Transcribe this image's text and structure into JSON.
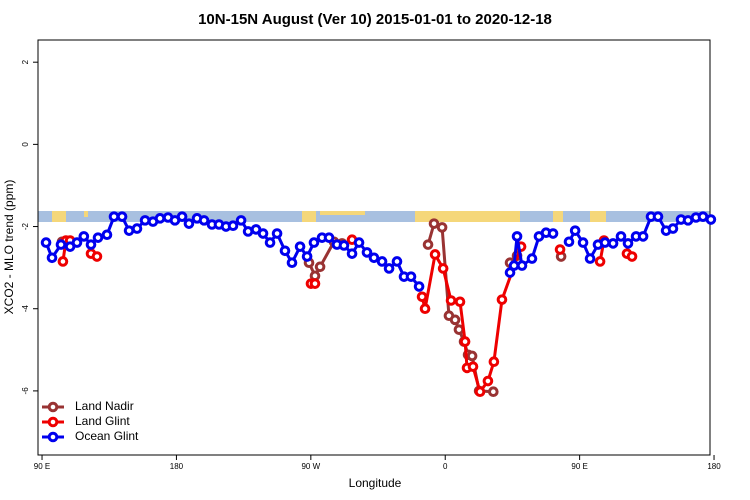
{
  "chart_data": {
    "type": "line",
    "title": "10N-15N August (Ver 10)   2015-01-01 to 2020-12-18",
    "x_label": "Longitude",
    "y_label": "XCO2 - MLO trend (ppm)",
    "xlim": [
      87.3,
      537.3
    ],
    "ylim": [
      -7.56,
      2.54
    ],
    "xticks": [
      {
        "value": 90,
        "label": "90 E"
      },
      {
        "value": 180,
        "label": "180"
      },
      {
        "value": 270,
        "label": "90 W"
      },
      {
        "value": 360,
        "label": "0"
      },
      {
        "value": 450,
        "label": "90 E"
      },
      {
        "value": 540,
        "label": "180"
      }
    ],
    "yticks": [
      2,
      0,
      -2,
      -4,
      -6
    ],
    "legend": "bottom-left",
    "series": [
      {
        "name": "Land Nadir",
        "color": "#993333",
        "x": [
          103.4,
          null,
          268.8,
          272.8,
          276.2,
          285.5,
          290.9,
          null,
          348.5,
          352.5,
          357.9,
          362.5,
          366.6,
          369.2,
          372.6,
          375.3,
          378,
          382.7,
          392.2,
          null,
          403.4,
          408.1,
          null,
          437.6
        ],
        "values": [
          -2.37,
          null,
          -2.88,
          -3.2,
          -2.98,
          -2.37,
          -2.41,
          null,
          -2.44,
          -1.93,
          -2.02,
          -4.17,
          -4.27,
          -4.51,
          -4.8,
          -5.12,
          -5.15,
          -6,
          -6.02,
          null,
          -2.88,
          -2.71,
          null,
          -2.73
        ]
      },
      {
        "name": "Land Glint",
        "color": "#ee0000",
        "x": [
          104,
          106,
          108.8,
          null,
          122.8,
          126.8,
          null,
          270.1,
          272.8,
          null,
          297.6,
          null,
          344.5,
          346.5,
          353.2,
          358.6,
          363.9,
          369.9,
          373.3,
          374.6,
          378.6,
          383.3,
          388.6,
          392.6,
          398,
          410.8,
          null,
          436.9,
          null,
          463.7,
          466.3,
          null,
          481.7,
          485.1
        ],
        "values": [
          -2.85,
          -2.34,
          -2.34,
          null,
          -2.66,
          -2.73,
          null,
          -3.39,
          -3.39,
          null,
          -2.32,
          null,
          -3.71,
          -4,
          -2.68,
          -3.02,
          -3.8,
          -3.83,
          -4.8,
          -5.44,
          -5.41,
          -6.02,
          -5.76,
          -5.29,
          -3.78,
          -2.49,
          null,
          -2.56,
          null,
          -2.85,
          -2.34,
          null,
          -2.66,
          -2.73
        ]
      },
      {
        "name": "Ocean Glint",
        "color": "#0000ee",
        "x": [
          92.7,
          96.7,
          102.7,
          108.8,
          113.4,
          118,
          122.8,
          127.5,
          133.5,
          138.2,
          143.6,
          148.3,
          153.6,
          159,
          164.3,
          169,
          174.4,
          179,
          183.8,
          188.4,
          193.8,
          198.5,
          203.8,
          208.5,
          213.2,
          217.9,
          223.3,
          228,
          233.3,
          238,
          242.7,
          247.4,
          252.7,
          257.4,
          262.8,
          267.5,
          272.1,
          277.5,
          282.2,
          287.5,
          292.2,
          297.6,
          302.3,
          307.6,
          312.3,
          317.7,
          322.4,
          327.7,
          332.4,
          337.1,
          342.5,
          null,
          403.4,
          406.1,
          408.1,
          411.4,
          418.1,
          422.8,
          427.5,
          432.2,
          null,
          442.9,
          447,
          452.3,
          457,
          462.3,
          467,
          472.4,
          477.7,
          482.4,
          487.8,
          492.5,
          497.8,
          502.5,
          507.9,
          512.5,
          517.9,
          522.6,
          527.9,
          532.6,
          537.9
        ],
        "values": [
          -2.39,
          -2.76,
          -2.44,
          -2.49,
          -2.39,
          -2.24,
          -2.44,
          -2.27,
          -2.2,
          -1.76,
          -1.76,
          -2.1,
          -2.05,
          -1.85,
          -1.88,
          -1.8,
          -1.78,
          -1.85,
          -1.76,
          -1.93,
          -1.8,
          -1.85,
          -1.95,
          -1.95,
          -2,
          -1.98,
          -1.85,
          -2.12,
          -2.07,
          -2.17,
          -2.39,
          -2.17,
          -2.59,
          -2.88,
          -2.49,
          -2.73,
          -2.39,
          -2.27,
          -2.27,
          -2.44,
          -2.46,
          -2.66,
          -2.39,
          -2.63,
          -2.76,
          -2.85,
          -3.02,
          -2.85,
          -3.22,
          -3.22,
          -3.46,
          null,
          -3.12,
          -2.95,
          -2.24,
          -2.95,
          -2.78,
          -2.24,
          -2.15,
          -2.17,
          null,
          -2.37,
          -2.1,
          -2.39,
          -2.78,
          -2.44,
          -2.39,
          -2.41,
          -2.24,
          -2.41,
          -2.24,
          -2.24,
          -1.76,
          -1.76,
          -2.1,
          -2.05,
          -1.83,
          -1.85,
          -1.78,
          -1.76,
          -1.83
        ]
      }
    ]
  }
}
